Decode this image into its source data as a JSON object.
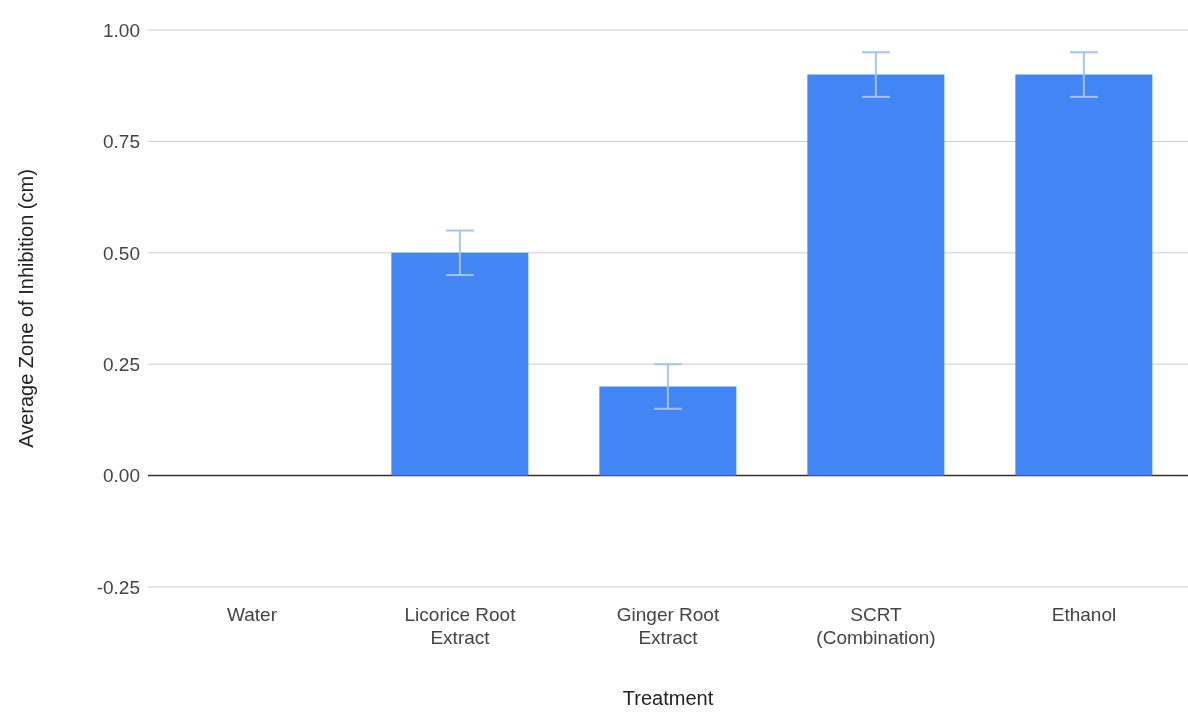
{
  "chart_data": {
    "type": "bar",
    "xlabel": "Treatment",
    "ylabel": "Average Zone of Inhibition (cm)",
    "categories": [
      "Water",
      "Licorice Root Extract",
      "Ginger Root Extract",
      "SCRT (Combination)",
      "Ethanol"
    ],
    "values": [
      0,
      0.5,
      0.2,
      0.9,
      0.9
    ],
    "errors": [
      null,
      0.05,
      0.05,
      0.05,
      0.05
    ],
    "color": "#4285f4",
    "ylim": [
      -0.25,
      1
    ],
    "yticks": [
      -0.25,
      {
        "value": 0,
        "label": "0.00"
      },
      0.25,
      {
        "value": 0.5,
        "label": "0.50"
      },
      0.75,
      {
        "value": 1,
        "label": "1.00"
      }
    ],
    "grid": "y",
    "legend": false
  }
}
